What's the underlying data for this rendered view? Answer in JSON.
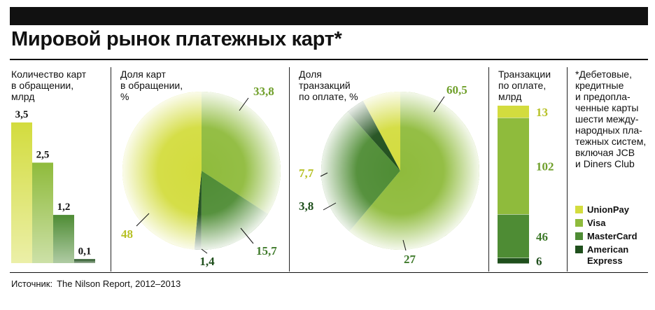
{
  "title": "Мировой рынок платежных карт*",
  "source_label": "Источник:",
  "source_text": "The Nilson Report, 2012–2013",
  "footnote_lines": [
    "*Дебетовые,",
    "кредитные",
    "и предопла-",
    "ченные карты",
    "шести между-",
    "народных пла-",
    "тежных систем,",
    "включая JCB",
    "и Diners Club"
  ],
  "legend": [
    {
      "label": "UnionPay",
      "color": "#d3dc3e"
    },
    {
      "label": "Visa",
      "color": "#8fbb3c"
    },
    {
      "label": "MasterCard",
      "color": "#4e8c34"
    },
    {
      "label": "American",
      "label2": "Express",
      "color": "#1f4f1c"
    }
  ],
  "chart_data": [
    {
      "type": "bar",
      "title_lines": [
        "Количество карт",
        "в обращении,",
        "млрд"
      ],
      "categories": [
        "UnionPay",
        "Visa",
        "MasterCard",
        "American Express"
      ],
      "values": [
        3.5,
        2.5,
        1.2,
        0.1
      ],
      "value_labels": [
        "3,5",
        "2,5",
        "1,2",
        "0,1"
      ],
      "colors": [
        "#d3dc3e",
        "#8fbb3c",
        "#4e8c34",
        "#1f4f1c"
      ],
      "ylim": [
        0,
        3.5
      ]
    },
    {
      "type": "pie",
      "title_lines": [
        "Доля карт",
        "в обращении,",
        "%"
      ],
      "categories": [
        "Visa",
        "MasterCard",
        "American Express",
        "UnionPay"
      ],
      "values": [
        33.8,
        15.7,
        1.4,
        48
      ],
      "value_labels": [
        "33,8",
        "15,7",
        "1,4",
        "48"
      ],
      "colors": [
        "#8fbb3c",
        "#4e8c34",
        "#1f4f1c",
        "#d3dc3e"
      ]
    },
    {
      "type": "pie",
      "title_lines": [
        "Доля",
        "транзакций",
        "по оплате, %"
      ],
      "categories": [
        "Visa",
        "MasterCard",
        "American Express",
        "UnionPay"
      ],
      "values": [
        60.5,
        27,
        3.8,
        7.7
      ],
      "value_labels": [
        "60,5",
        "27",
        "3,8",
        "7,7"
      ],
      "colors": [
        "#8fbb3c",
        "#4e8c34",
        "#1f4f1c",
        "#d3dc3e"
      ]
    },
    {
      "type": "bar",
      "stacked": true,
      "title_lines": [
        "Транзакции",
        "по оплате,",
        "млрд"
      ],
      "categories": [
        "UnionPay",
        "Visa",
        "MasterCard",
        "American Express"
      ],
      "values": [
        13,
        102,
        46,
        6
      ],
      "value_labels": [
        "13",
        "102",
        "46",
        "6"
      ],
      "colors": [
        "#d3dc3e",
        "#8fbb3c",
        "#4e8c34",
        "#1f4f1c"
      ]
    }
  ]
}
